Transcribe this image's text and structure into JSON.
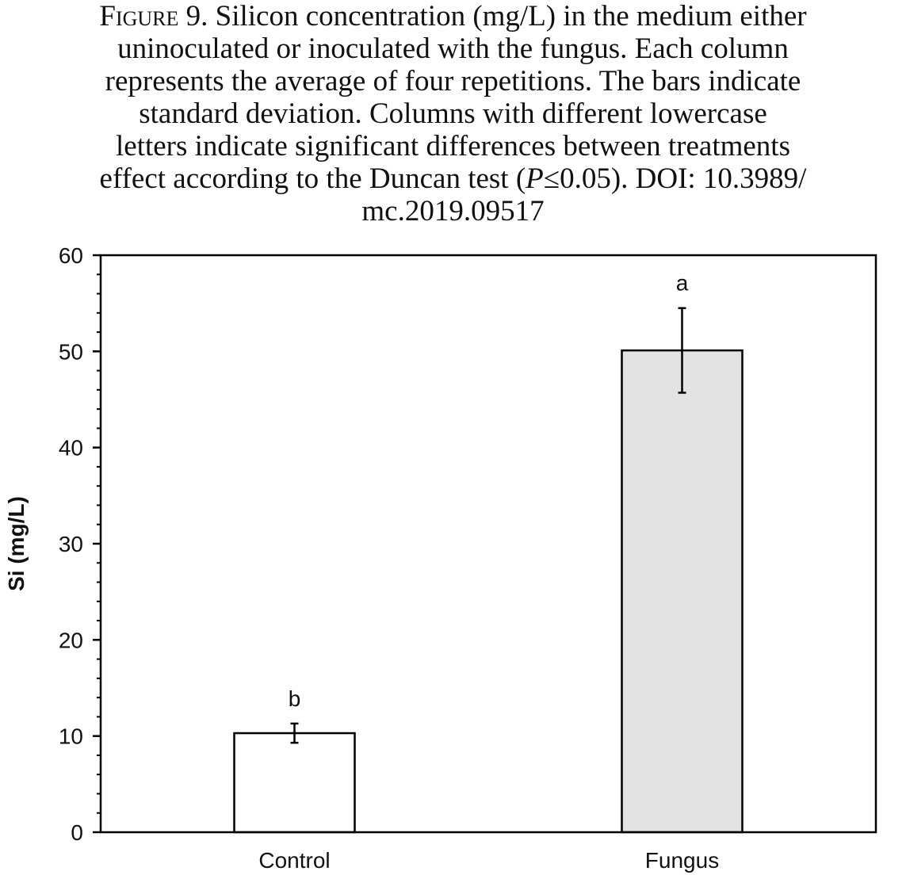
{
  "caption": {
    "figure_label": "Figure 9.",
    "line1": "Silicon concentration (mg/L) in the medium either",
    "line2": "uninoculated or inoculated with the fungus. Each column",
    "line3": "represents the average of four repetitions. The bars indicate",
    "line4": "standard deviation. Columns with different lowercase",
    "line5": "letters indicate significant differences between treatments",
    "line6_pre": "effect according to the Duncan test (",
    "line6_italic": "P",
    "line6_post": "≤0.05). DOI: 10.3989/",
    "line7": "mc.2019.09517"
  },
  "chart_data": {
    "type": "bar",
    "categories": [
      "Control",
      "Fungus"
    ],
    "values": [
      10.3,
      50.1
    ],
    "errors": [
      1.0,
      4.4
    ],
    "significance_letters": [
      "b",
      "a"
    ],
    "bar_colors": [
      "#ffffff",
      "#e3e3e3"
    ],
    "title": "",
    "xlabel": "",
    "ylabel": "Si (mg/L)",
    "ylim": [
      0,
      60
    ],
    "yticks": [
      0,
      10,
      20,
      30,
      40,
      50,
      60
    ],
    "minor_tick_step": 2,
    "grid": false,
    "legend": "none"
  }
}
